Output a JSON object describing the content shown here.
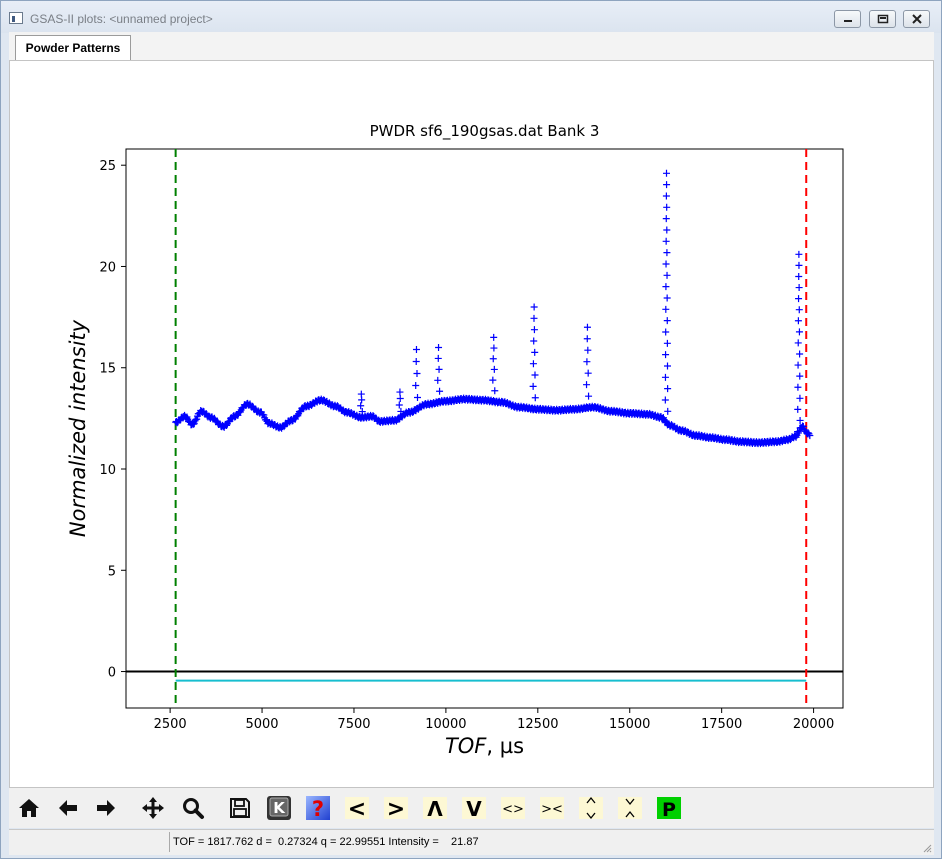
{
  "window": {
    "title": "GSAS-II plots: <unnamed project>"
  },
  "tabs": [
    {
      "label": "Powder Patterns"
    }
  ],
  "toolbar": {
    "buttons": [
      {
        "icon": "home-icon"
      },
      {
        "icon": "back-arrow-icon"
      },
      {
        "icon": "forward-arrow-icon"
      },
      {
        "icon": "pan-icon"
      },
      {
        "icon": "zoom-icon"
      },
      {
        "icon": "save-icon"
      },
      {
        "icon": "keyboard-icon",
        "glyph": "K"
      },
      {
        "icon": "help-icon",
        "glyph": "?"
      },
      {
        "glyph": "<"
      },
      {
        "glyph": ">"
      },
      {
        "glyph": "Λ"
      },
      {
        "glyph": "V"
      },
      {
        "glyph": "<>"
      },
      {
        "glyph": "><"
      },
      {
        "glyph": "^v"
      },
      {
        "glyph": "v^"
      },
      {
        "glyph": "P"
      }
    ]
  },
  "status": {
    "text": "TOF = 1817.762 d =  0.27324 q = 22.99551 Intensity =    21.87"
  },
  "colors": {
    "obs": "#0000ff",
    "lower_limit": "#008000",
    "upper_limit": "#ff0000",
    "zero_line": "#000000",
    "difference": "#17becf",
    "p_button": "#00d000"
  },
  "chart_data": {
    "type": "scatter",
    "title": "PWDR sf6_190gsas.dat Bank 3",
    "xlabel": "TOF, µs",
    "ylabel": "Normalized intensity",
    "xlim": [
      1300,
      20800
    ],
    "ylim": [
      -1.8,
      25.8
    ],
    "xticks": [
      "2500",
      "5000",
      "7500",
      "10000",
      "12500",
      "15000",
      "17500",
      "20000"
    ],
    "yticks": [
      "0",
      "5",
      "10",
      "15",
      "20",
      "25"
    ],
    "xtick_values": [
      2500,
      5000,
      7500,
      10000,
      12500,
      15000,
      17500,
      20000
    ],
    "ytick_values": [
      0,
      5,
      10,
      15,
      20,
      25
    ],
    "limits": {
      "lower": 2650,
      "upper": 19800
    },
    "zero_line_y": 0,
    "difference_y": -0.45,
    "background_points": [
      [
        2650,
        12.3
      ],
      [
        2900,
        12.6
      ],
      [
        3100,
        12.2
      ],
      [
        3350,
        12.85
      ],
      [
        3600,
        12.55
      ],
      [
        3950,
        12.1
      ],
      [
        4250,
        12.6
      ],
      [
        4600,
        13.2
      ],
      [
        4950,
        12.8
      ],
      [
        5200,
        12.25
      ],
      [
        5500,
        12.05
      ],
      [
        5800,
        12.4
      ],
      [
        6200,
        13.1
      ],
      [
        6600,
        13.4
      ],
      [
        7000,
        13.1
      ],
      [
        7300,
        12.8
      ],
      [
        7700,
        12.55
      ],
      [
        8000,
        12.6
      ],
      [
        8200,
        12.35
      ],
      [
        8600,
        12.4
      ],
      [
        9000,
        12.8
      ],
      [
        9500,
        13.2
      ],
      [
        10000,
        13.35
      ],
      [
        10500,
        13.45
      ],
      [
        11000,
        13.4
      ],
      [
        11500,
        13.3
      ],
      [
        12000,
        13.05
      ],
      [
        12500,
        12.95
      ],
      [
        13000,
        12.9
      ],
      [
        13500,
        12.95
      ],
      [
        14000,
        13.05
      ],
      [
        14500,
        12.85
      ],
      [
        15000,
        12.75
      ],
      [
        15500,
        12.7
      ],
      [
        15850,
        12.55
      ],
      [
        16100,
        12.15
      ],
      [
        16400,
        11.9
      ],
      [
        16800,
        11.65
      ],
      [
        17200,
        11.55
      ],
      [
        17600,
        11.45
      ],
      [
        18000,
        11.35
      ],
      [
        18500,
        11.3
      ],
      [
        19000,
        11.35
      ],
      [
        19300,
        11.45
      ],
      [
        19500,
        11.6
      ],
      [
        19700,
        12.1
      ],
      [
        19800,
        11.8
      ],
      [
        19900,
        11.7
      ]
    ],
    "peaks": [
      {
        "x": 7700,
        "height": 13.7
      },
      {
        "x": 8750,
        "height": 13.8
      },
      {
        "x": 9200,
        "height": 15.9
      },
      {
        "x": 9800,
        "height": 16.0
      },
      {
        "x": 11300,
        "height": 16.5
      },
      {
        "x": 12400,
        "height": 18.0
      },
      {
        "x": 13850,
        "height": 17.0
      },
      {
        "x": 16000,
        "height": 24.6
      },
      {
        "x": 19600,
        "height": 20.6
      }
    ]
  }
}
